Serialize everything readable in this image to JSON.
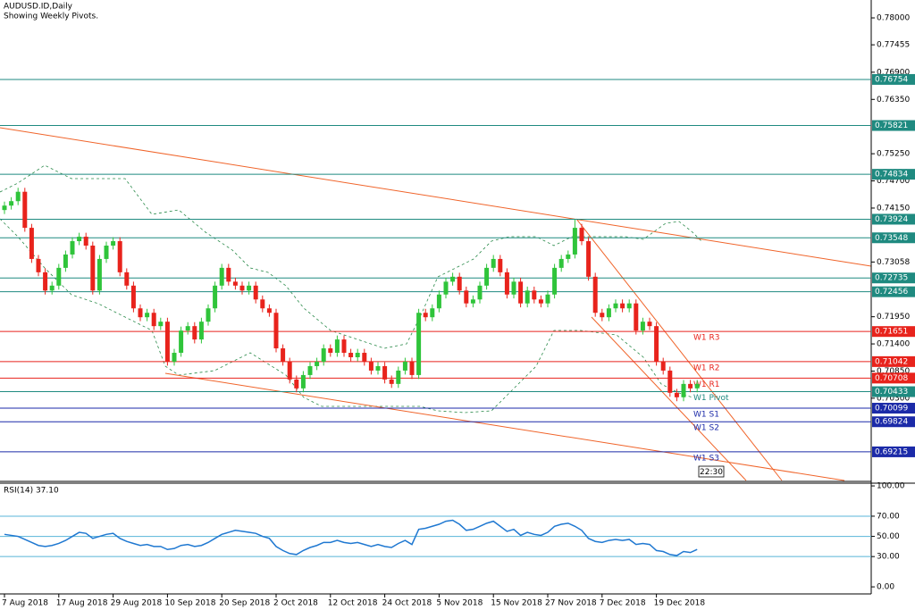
{
  "chart_data": {
    "type": "candlestick",
    "title": "AUDUSD.ID,Daily",
    "subtitle": "Showing Weekly Pivots.",
    "time_label": "22:30",
    "categories": [
      "7 Aug 2018",
      null,
      null,
      null,
      null,
      null,
      null,
      null,
      "17 Aug 2018",
      null,
      null,
      null,
      null,
      null,
      null,
      null,
      "29 Aug 2018",
      null,
      null,
      null,
      null,
      null,
      null,
      null,
      "10 Sep 2018",
      null,
      null,
      null,
      null,
      null,
      null,
      null,
      "20 Sep 2018",
      null,
      null,
      null,
      null,
      null,
      null,
      null,
      "2 Oct 2018",
      null,
      null,
      null,
      null,
      null,
      null,
      null,
      "12 Oct 2018",
      null,
      null,
      null,
      null,
      null,
      null,
      null,
      "24 Oct 2018",
      null,
      null,
      null,
      null,
      null,
      null,
      null,
      "5 Nov 2018",
      null,
      null,
      null,
      null,
      null,
      null,
      null,
      "15 Nov 2018",
      null,
      null,
      null,
      null,
      null,
      null,
      null,
      "27 Nov 2018",
      null,
      null,
      null,
      null,
      null,
      null,
      null,
      "7 Dec 2018",
      null,
      null,
      null,
      null,
      null,
      null,
      null,
      "19 Dec 2018",
      null,
      null,
      null,
      null,
      null,
      null
    ],
    "open": [
      0.7411,
      0.742,
      0.7429,
      0.7448,
      0.7375,
      0.7312,
      0.7285,
      0.7248,
      0.7258,
      0.7294,
      0.7321,
      0.7348,
      0.7357,
      0.7339,
      0.7248,
      0.7312,
      0.7339,
      0.7348,
      0.7285,
      0.7258,
      0.7212,
      0.7194,
      0.7203,
      0.7176,
      0.7185,
      0.7104,
      0.7122,
      0.7167,
      0.7176,
      0.7149,
      0.7185,
      0.7212,
      0.7258,
      0.7294,
      0.7266,
      0.7258,
      0.7248,
      0.7258,
      0.723,
      0.7212,
      0.7203,
      0.7131,
      0.7104,
      0.7068,
      0.705,
      0.7077,
      0.7095,
      0.7104,
      0.7131,
      0.7122,
      0.7149,
      0.7122,
      0.7113,
      0.7122,
      0.7104,
      0.7086,
      0.7095,
      0.7068,
      0.7059,
      0.7086,
      0.7104,
      0.7077,
      0.7203,
      0.7194,
      0.7212,
      0.724,
      0.7266,
      0.7276,
      0.7248,
      0.7222,
      0.723,
      0.7258,
      0.7294,
      0.7312,
      0.7285,
      0.724,
      0.7266,
      0.7222,
      0.7248,
      0.723,
      0.7222,
      0.724,
      0.7294,
      0.7312,
      0.7321,
      0.7375,
      0.7348,
      0.7276,
      0.7203,
      0.7194,
      0.7212,
      0.7222,
      0.7212,
      0.7222,
      0.7167,
      0.7185,
      0.7176,
      0.7104,
      0.7086,
      0.7041,
      0.7032,
      0.7059,
      0.705
    ],
    "high": [
      0.7428,
      0.7437,
      0.7456,
      0.7456,
      0.7383,
      0.732,
      0.7293,
      0.7266,
      0.7302,
      0.7329,
      0.7356,
      0.7365,
      0.7365,
      0.7347,
      0.732,
      0.7347,
      0.7356,
      0.7356,
      0.7293,
      0.7266,
      0.722,
      0.7211,
      0.7211,
      0.7193,
      0.7193,
      0.713,
      0.7175,
      0.7184,
      0.7184,
      0.7193,
      0.722,
      0.7266,
      0.7302,
      0.7302,
      0.7274,
      0.7266,
      0.7266,
      0.7266,
      0.7238,
      0.722,
      0.7211,
      0.7139,
      0.7112,
      0.7076,
      0.7085,
      0.7103,
      0.7112,
      0.7139,
      0.7139,
      0.7157,
      0.7157,
      0.713,
      0.713,
      0.713,
      0.7112,
      0.7103,
      0.7103,
      0.7076,
      0.7094,
      0.7112,
      0.7112,
      0.7211,
      0.7211,
      0.722,
      0.7248,
      0.7274,
      0.7284,
      0.7284,
      0.7256,
      0.7238,
      0.7266,
      0.7302,
      0.732,
      0.732,
      0.7293,
      0.7274,
      0.7274,
      0.7256,
      0.7256,
      0.7238,
      0.7248,
      0.7302,
      0.732,
      0.7329,
      0.7392,
      0.7383,
      0.7356,
      0.7284,
      0.7211,
      0.722,
      0.723,
      0.723,
      0.723,
      0.723,
      0.7193,
      0.7193,
      0.7184,
      0.7112,
      0.7094,
      0.7049,
      0.7067,
      0.7067,
      0.7067
    ],
    "low": [
      0.7403,
      0.7412,
      0.7421,
      0.7367,
      0.7304,
      0.7277,
      0.724,
      0.724,
      0.725,
      0.7286,
      0.7313,
      0.734,
      0.7331,
      0.724,
      0.724,
      0.7304,
      0.7331,
      0.7277,
      0.725,
      0.7204,
      0.7186,
      0.7186,
      0.7168,
      0.7168,
      0.7096,
      0.7096,
      0.7114,
      0.7159,
      0.7141,
      0.7141,
      0.7177,
      0.7204,
      0.725,
      0.7258,
      0.725,
      0.724,
      0.724,
      0.7222,
      0.7204,
      0.7195,
      0.7123,
      0.7096,
      0.706,
      0.7042,
      0.7042,
      0.7069,
      0.7087,
      0.7096,
      0.7114,
      0.7114,
      0.7114,
      0.7105,
      0.7105,
      0.7096,
      0.7078,
      0.7078,
      0.706,
      0.7051,
      0.7051,
      0.7078,
      0.7069,
      0.7069,
      0.7186,
      0.7186,
      0.7204,
      0.7232,
      0.7258,
      0.724,
      0.7214,
      0.7214,
      0.7222,
      0.725,
      0.7286,
      0.7277,
      0.7232,
      0.7232,
      0.7214,
      0.7214,
      0.7222,
      0.7214,
      0.7214,
      0.7232,
      0.7286,
      0.7304,
      0.7313,
      0.734,
      0.7268,
      0.7195,
      0.7186,
      0.7186,
      0.7204,
      0.7204,
      0.7204,
      0.7159,
      0.7159,
      0.7168,
      0.7096,
      0.7078,
      0.7033,
      0.7024,
      0.7024,
      0.7042,
      0.7042
    ],
    "close": [
      0.742,
      0.7429,
      0.7448,
      0.7375,
      0.7312,
      0.7285,
      0.7248,
      0.7258,
      0.7294,
      0.7321,
      0.7348,
      0.7357,
      0.7339,
      0.7248,
      0.7312,
      0.7339,
      0.7348,
      0.7285,
      0.7258,
      0.7212,
      0.7194,
      0.7203,
      0.7176,
      0.7185,
      0.7104,
      0.7122,
      0.7167,
      0.7176,
      0.7149,
      0.7185,
      0.7212,
      0.7258,
      0.7294,
      0.7266,
      0.7258,
      0.7248,
      0.7258,
      0.723,
      0.7212,
      0.7203,
      0.7131,
      0.7104,
      0.7068,
      0.705,
      0.7077,
      0.7095,
      0.7104,
      0.7131,
      0.7122,
      0.7149,
      0.7122,
      0.7113,
      0.7122,
      0.7104,
      0.7086,
      0.7095,
      0.7068,
      0.7059,
      0.7086,
      0.7104,
      0.7077,
      0.7203,
      0.7194,
      0.7212,
      0.724,
      0.7266,
      0.7276,
      0.7248,
      0.7222,
      0.723,
      0.7258,
      0.7294,
      0.7312,
      0.7285,
      0.724,
      0.7266,
      0.7222,
      0.7248,
      0.723,
      0.7222,
      0.724,
      0.7294,
      0.7312,
      0.7321,
      0.7375,
      0.7348,
      0.7276,
      0.7203,
      0.7194,
      0.7212,
      0.7222,
      0.7212,
      0.7222,
      0.7167,
      0.7185,
      0.7176,
      0.7104,
      0.7086,
      0.7041,
      0.7032,
      0.7059,
      0.705,
      0.7059
    ],
    "up_color": "#2fc43a",
    "down_color": "#e8231c",
    "ylim": [
      0.68635,
      0.78362
    ],
    "yticks": [
      {
        "value": 0.78,
        "label": "0.78000"
      },
      {
        "value": 0.77455,
        "label": "0.77455"
      },
      {
        "value": 0.769,
        "label": "0.76900"
      },
      {
        "value": 0.7635,
        "label": "0.76350"
      },
      {
        "value": 0.7525,
        "label": "0.75250"
      },
      {
        "value": 0.747,
        "label": "0.74700"
      },
      {
        "value": 0.7415,
        "label": "0.74150"
      },
      {
        "value": 0.73058,
        "label": "0.73058"
      },
      {
        "value": 0.7195,
        "label": "0.71950"
      },
      {
        "value": 0.714,
        "label": "0.71400"
      },
      {
        "value": 0.7085,
        "label": "0.70850"
      },
      {
        "value": 0.703,
        "label": "0.70300"
      }
    ],
    "levels": [
      {
        "value": 0.76754,
        "label": "0.76754",
        "color": "#1f8a80"
      },
      {
        "value": 0.75821,
        "label": "0.75821",
        "color": "#1f8a80"
      },
      {
        "value": 0.74834,
        "label": "0.74834",
        "color": "#1f8a80"
      },
      {
        "value": 0.73924,
        "label": "0.73924",
        "color": "#1f8a80"
      },
      {
        "value": 0.73548,
        "label": "0.73548",
        "color": "#1f8a80"
      },
      {
        "value": 0.72735,
        "label": "0.72735",
        "color": "#1f8a80"
      },
      {
        "value": 0.72456,
        "label": "0.72456",
        "color": "#1f8a80"
      },
      {
        "value": 0.71651,
        "label": "0.71651",
        "color": "#e8231c",
        "pivot": "W1 R3"
      },
      {
        "value": 0.71042,
        "label": "0.71042",
        "color": "#e8231c",
        "pivot": "W1 R2"
      },
      {
        "value": 0.70708,
        "label": "0.70708",
        "color": "#e8231c",
        "pivot": "W1 R1"
      },
      {
        "value": 0.70433,
        "label": "0.70433",
        "color": "#1f8a80",
        "pivot": "W1 Pivot"
      },
      {
        "value": 0.70099,
        "label": "0.70099",
        "color": "#1b2aa8",
        "pivot": "W1 S1"
      },
      {
        "value": 0.69824,
        "label": "0.69824",
        "color": "#1b2aa8",
        "pivot": "W1 S2"
      },
      {
        "value": 0.69215,
        "label": "0.69215",
        "color": "#1b2aa8",
        "pivot": "W1 S3"
      }
    ],
    "rsi": {
      "label": "RSI(14) 37.10",
      "color": "#1f78d1",
      "grid_color": "#58b4d8",
      "values": [
        52,
        51,
        50,
        47,
        44,
        41,
        40,
        41,
        43,
        46,
        50,
        54,
        53,
        48,
        50,
        52,
        53,
        48,
        45,
        43,
        41,
        42,
        40,
        40,
        37,
        38,
        41,
        42,
        40,
        41,
        44,
        48,
        52,
        54,
        56,
        55,
        54,
        53,
        50,
        48,
        40,
        36,
        33,
        32,
        36,
        39,
        41,
        44,
        44,
        46,
        44,
        43,
        44,
        42,
        40,
        42,
        40,
        39,
        43,
        46,
        42,
        57,
        58,
        60,
        62,
        65,
        66,
        62,
        56,
        57,
        60,
        63,
        65,
        60,
        55,
        57,
        51,
        54,
        52,
        51,
        54,
        60,
        62,
        63,
        60,
        56,
        48,
        45,
        44,
        46,
        47,
        46,
        47,
        42,
        43,
        42,
        36,
        35,
        32,
        31,
        35,
        34,
        37.1
      ],
      "ylim": [
        -7,
        102.7
      ],
      "yticks": [
        {
          "value": 100,
          "label": "100.00"
        },
        {
          "value": 70,
          "label": "70.00"
        },
        {
          "value": 50,
          "label": "50.00"
        },
        {
          "value": 30,
          "label": "30.00"
        },
        {
          "value": 0,
          "label": "0.00"
        }
      ]
    }
  }
}
